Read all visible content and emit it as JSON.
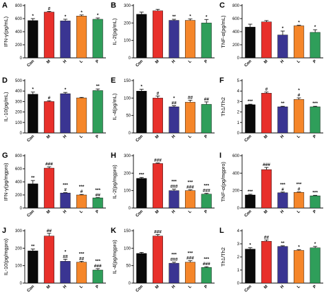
{
  "colors": {
    "Con": "#0a0a0a",
    "M": "#e8302b",
    "H": "#3a3592",
    "L": "#f5862a",
    "P": "#2f9e5a"
  },
  "chart_data": [
    {
      "type": "bar",
      "letter": "A",
      "ylabel": "IFN-γ(pg/mL)",
      "categories": [
        "Con",
        "M",
        "H",
        "L",
        "P"
      ],
      "values": [
        570,
        700,
        565,
        640,
        590
      ],
      "errors": [
        30,
        10,
        25,
        15,
        20
      ],
      "ylim": [
        0,
        800
      ],
      "yticks": [
        "0",
        "200",
        "400",
        "600",
        "800"
      ],
      "sig": [
        "*",
        "#",
        "*",
        "*",
        "*"
      ]
    },
    {
      "type": "bar",
      "letter": "B",
      "ylabel": "IL-2(pg/mL)",
      "categories": [
        "Con",
        "M",
        "H",
        "L",
        "P"
      ],
      "values": [
        250,
        270,
        215,
        215,
        200
      ],
      "errors": [
        12,
        8,
        6,
        8,
        20
      ],
      "ylim": [
        0,
        300
      ],
      "yticks": [
        "0",
        "100",
        "200",
        "300"
      ],
      "sig": [
        "",
        "",
        "**",
        "*",
        "*"
      ]
    },
    {
      "type": "bar",
      "letter": "C",
      "ylabel": "TNF-α(pg/mL)",
      "categories": [
        "Con",
        "M",
        "H",
        "L",
        "P"
      ],
      "values": [
        470,
        550,
        350,
        490,
        390
      ],
      "errors": [
        45,
        20,
        60,
        8,
        40
      ],
      "ylim": [
        0,
        800
      ],
      "yticks": [
        "0",
        "200",
        "400",
        "600",
        "800"
      ],
      "sig": [
        "",
        "",
        "*",
        "*",
        "*"
      ]
    },
    {
      "type": "bar",
      "letter": "D",
      "ylabel": "IL-10(pg/mL)",
      "categories": [
        "Con",
        "M",
        "H",
        "L",
        "P"
      ],
      "values": [
        370,
        300,
        375,
        335,
        405
      ],
      "errors": [
        20,
        8,
        12,
        5,
        15
      ],
      "ylim": [
        0,
        500
      ],
      "yticks": [
        "0",
        "100",
        "200",
        "300",
        "400",
        "500"
      ],
      "sig": [
        "*",
        "#",
        "*",
        "",
        "**"
      ]
    },
    {
      "type": "bar",
      "letter": "E",
      "ylabel": "IL-4(pg/mL)",
      "categories": [
        "Con",
        "M",
        "H",
        "L",
        "P"
      ],
      "values": [
        120,
        100,
        75,
        88,
        82
      ],
      "errors": [
        5,
        6,
        3,
        6,
        7
      ],
      "ylim": [
        0,
        150
      ],
      "yticks": [
        "0",
        "50",
        "100",
        "150"
      ],
      "sig": [
        "*",
        "#",
        "*\n##",
        "##",
        "##"
      ]
    },
    {
      "type": "bar",
      "letter": "F",
      "ylabel": "Th1/Th2",
      "categories": [
        "Con",
        "M",
        "H",
        "L",
        "P"
      ],
      "values": [
        2.7,
        3.8,
        2.5,
        3.2,
        2.5
      ],
      "errors": [
        0.05,
        0.1,
        0.05,
        0.15,
        0.05
      ],
      "ylim": [
        0,
        5
      ],
      "yticks": [
        "0",
        "1",
        "2",
        "3",
        "4",
        "5"
      ],
      "sig": [
        "***",
        "#",
        "**",
        "*\n#",
        "***"
      ]
    },
    {
      "type": "bar",
      "letter": "G",
      "ylabel": "IFN-γ(pg/mgpro)",
      "categories": [
        "Con",
        "M",
        "H",
        "L",
        "P"
      ],
      "values": [
        370,
        610,
        230,
        200,
        155
      ],
      "errors": [
        50,
        20,
        5,
        8,
        5
      ],
      "ylim": [
        0,
        800
      ],
      "yticks": [
        "0",
        "200",
        "400",
        "600",
        "800"
      ],
      "sig": [
        "**",
        "###",
        "***\n#",
        "***\n#",
        "***\n##"
      ]
    },
    {
      "type": "bar",
      "letter": "H",
      "ylabel": "IL-2(pg/mgpro)",
      "categories": [
        "Con",
        "M",
        "H",
        "L",
        "P"
      ],
      "values": [
        170,
        255,
        100,
        100,
        80
      ],
      "errors": [
        5,
        3,
        8,
        4,
        4
      ],
      "ylim": [
        0,
        300
      ],
      "yticks": [
        "0",
        "100",
        "200",
        "300"
      ],
      "sig": [
        "***",
        "###",
        "***\n###",
        "***\n###",
        "***\n###"
      ]
    },
    {
      "type": "bar",
      "letter": "I",
      "ylabel": "TNF-α(pg/mgpro)",
      "categories": [
        "Con",
        "M",
        "H",
        "L",
        "P"
      ],
      "values": [
        150,
        440,
        175,
        180,
        140
      ],
      "errors": [
        8,
        25,
        8,
        4,
        5
      ],
      "ylim": [
        0,
        600
      ],
      "yticks": [
        "0",
        "200",
        "400",
        "600"
      ],
      "sig": [
        "***",
        "###",
        "***\n#",
        "***\n#",
        "***"
      ]
    },
    {
      "type": "bar",
      "letter": "J",
      "ylabel": "IL-10(pg/mgpro)",
      "categories": [
        "Con",
        "M",
        "H",
        "L",
        "P"
      ],
      "values": [
        185,
        270,
        125,
        120,
        75
      ],
      "errors": [
        10,
        15,
        12,
        5,
        8
      ],
      "ylim": [
        0,
        300
      ],
      "yticks": [
        "0",
        "100",
        "200",
        "300"
      ],
      "sig": [
        "**",
        "##",
        "*\n##",
        "***\n##",
        "***\n###"
      ]
    },
    {
      "type": "bar",
      "letter": "K",
      "ylabel": "IL-4(pg/mgpro)",
      "categories": [
        "Con",
        "M",
        "H",
        "L",
        "P"
      ],
      "values": [
        85,
        135,
        57,
        60,
        45
      ],
      "errors": [
        3,
        4,
        3,
        4,
        2
      ],
      "ylim": [
        0,
        150
      ],
      "yticks": [
        "0",
        "50",
        "100",
        "150"
      ],
      "sig": [
        "",
        "###",
        "***\n###",
        "***\n###",
        "***\n###"
      ]
    },
    {
      "type": "bar",
      "letter": "L",
      "ylabel": "Th1/Th2",
      "categories": [
        "Con",
        "M",
        "H",
        "L",
        "P"
      ],
      "values": [
        2.6,
        3.2,
        2.8,
        2.5,
        2.7
      ],
      "errors": [
        0.1,
        0.1,
        0.05,
        0.05,
        0.1
      ],
      "ylim": [
        0,
        4
      ],
      "yticks": [
        "0",
        "1",
        "2",
        "3",
        "4"
      ],
      "sig": [
        "*",
        "##",
        "**",
        "*",
        "*"
      ]
    }
  ]
}
